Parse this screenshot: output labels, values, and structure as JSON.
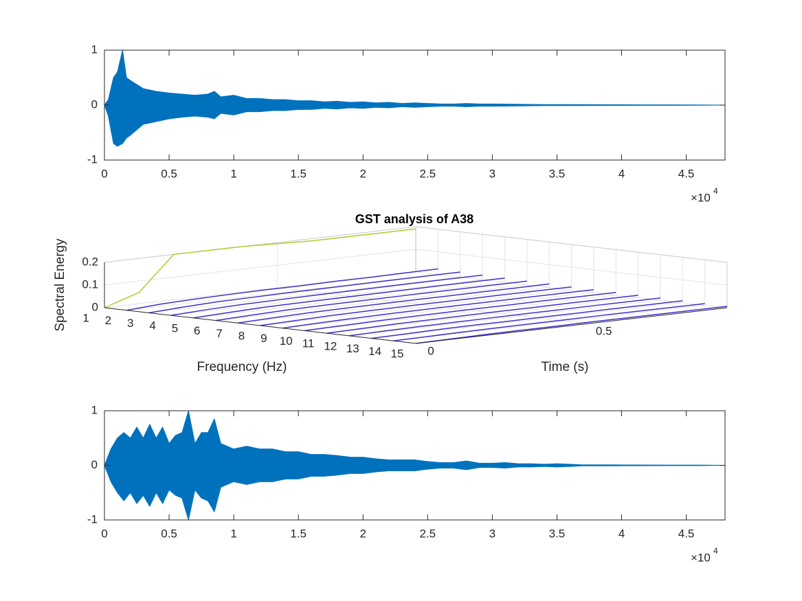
{
  "chart_data": [
    {
      "type": "wave",
      "x": [
        0,
        300,
        700,
        1000,
        1400,
        1700,
        2000,
        3000,
        4000,
        5000,
        6000,
        7000,
        8000,
        8500,
        9000,
        10000,
        11000,
        12000,
        13000,
        14000,
        15000,
        16000,
        17000,
        18000,
        19000,
        20000,
        21000,
        22000,
        23000,
        24000,
        25000,
        26000,
        27000,
        28000,
        29000,
        30000,
        32000,
        34000,
        36000,
        38000,
        40000,
        42000,
        44000,
        46000,
        48000
      ],
      "series": [
        {
          "color": "#0072bd",
          "values": [
            0,
            0.1,
            0.5,
            0.6,
            1,
            0.5,
            0.45,
            0.3,
            0.25,
            0.22,
            0.2,
            0.18,
            0.2,
            0.25,
            0.15,
            0.18,
            0.12,
            0.12,
            0.1,
            0.1,
            0.08,
            0.08,
            0.06,
            0.07,
            0.05,
            0.06,
            0.04,
            0.05,
            0.03,
            0.04,
            0.03,
            0.02,
            0.02,
            0.03,
            0.02,
            0.02,
            0.015,
            0.01,
            0.01,
            0.008,
            0.006,
            0.005,
            0.004,
            0.003,
            0
          ]
        },
        {
          "color": "#0072bd",
          "values": [
            0,
            -0.2,
            -0.7,
            -0.75,
            -0.7,
            -0.6,
            -0.55,
            -0.35,
            -0.3,
            -0.25,
            -0.22,
            -0.2,
            -0.22,
            -0.25,
            -0.15,
            -0.18,
            -0.12,
            -0.12,
            -0.1,
            -0.1,
            -0.08,
            -0.08,
            -0.06,
            -0.07,
            -0.05,
            -0.06,
            -0.04,
            -0.05,
            -0.03,
            -0.04,
            -0.03,
            -0.02,
            -0.02,
            -0.03,
            -0.02,
            -0.02,
            -0.015,
            -0.01,
            -0.01,
            -0.008,
            -0.006,
            -0.005,
            -0.004,
            -0.003,
            0
          ]
        }
      ],
      "xlim": [
        0,
        48000
      ],
      "xticks": [
        0,
        {
          "value": 5000,
          "label": "0.5"
        },
        {
          "value": 10000,
          "label": "1"
        },
        {
          "value": 15000,
          "label": "1.5"
        },
        {
          "value": 20000,
          "label": "2"
        },
        {
          "value": 25000,
          "label": "2.5"
        },
        {
          "value": 30000,
          "label": "3"
        },
        {
          "value": 35000,
          "label": "3.5"
        },
        {
          "value": 40000,
          "label": "4"
        },
        {
          "value": 45000,
          "label": "4.5"
        }
      ],
      "x_multiplier": {
        "base": "×10",
        "exponent": "4"
      },
      "ylim": [
        -1,
        1
      ],
      "yticks": [
        -1,
        0,
        1
      ]
    },
    {
      "type": "waterfall3d",
      "title": "GST analysis of A38",
      "xlabel": "Frequency (Hz)",
      "ylabel": "Time (s)",
      "zlabel": "Spectral Energy",
      "xlim": [
        1,
        15
      ],
      "xticks": [
        1,
        2,
        3,
        4,
        5,
        6,
        7,
        8,
        9,
        10,
        11,
        12,
        13,
        14,
        15
      ],
      "ylim": [
        0,
        0.9
      ],
      "yticks": [
        0,
        0.5
      ],
      "zlim": [
        0,
        0.2
      ],
      "zticks": [
        0,
        0.1,
        0.2
      ],
      "y": [
        0,
        0.1,
        0.2,
        0.3,
        0.4,
        0.5,
        0.6,
        0.7,
        0.8,
        0.9
      ],
      "series": [
        {
          "x": 1,
          "color": "#b5c82e",
          "values": [
            0,
            0.05,
            0.2,
            0.2,
            0.2,
            0.195,
            0.19,
            0.19,
            0.19,
            0.19
          ]
        },
        {
          "x": 2,
          "color": "#3d2fc9",
          "values": [
            0,
            0.01,
            0.015,
            0.018,
            0.02,
            0.02,
            0.022,
            0.022,
            0.024,
            0.025
          ]
        },
        {
          "x": 3,
          "color": "#3d2fc9",
          "values": [
            0,
            0.008,
            0.014,
            0.016,
            0.018,
            0.019,
            0.02,
            0.021,
            0.022,
            0.022
          ]
        },
        {
          "x": 4,
          "color": "#3d2fc9",
          "values": [
            0,
            0.007,
            0.012,
            0.014,
            0.016,
            0.017,
            0.018,
            0.019,
            0.02,
            0.02
          ]
        },
        {
          "x": 5,
          "color": "#3d2fc9",
          "values": [
            0,
            0.006,
            0.011,
            0.013,
            0.014,
            0.015,
            0.016,
            0.017,
            0.018,
            0.018
          ]
        },
        {
          "x": 6,
          "color": "#3d2fc9",
          "values": [
            0,
            0.005,
            0.01,
            0.012,
            0.013,
            0.014,
            0.015,
            0.015,
            0.016,
            0.016
          ]
        },
        {
          "x": 7,
          "color": "#3d2fc9",
          "values": [
            0,
            0.005,
            0.009,
            0.011,
            0.012,
            0.013,
            0.013,
            0.014,
            0.014,
            0.015
          ]
        },
        {
          "x": 8,
          "color": "#3d2fc9",
          "values": [
            0,
            0.004,
            0.008,
            0.01,
            0.011,
            0.012,
            0.012,
            0.013,
            0.013,
            0.013
          ]
        },
        {
          "x": 9,
          "color": "#3d2fc9",
          "values": [
            0,
            0.004,
            0.007,
            0.009,
            0.01,
            0.011,
            0.011,
            0.012,
            0.012,
            0.012
          ]
        },
        {
          "x": 10,
          "color": "#3d2fc9",
          "values": [
            0,
            0.003,
            0.006,
            0.008,
            0.009,
            0.01,
            0.01,
            0.011,
            0.011,
            0.011
          ]
        },
        {
          "x": 11,
          "color": "#3d2fc9",
          "values": [
            0,
            0.003,
            0.006,
            0.007,
            0.008,
            0.009,
            0.009,
            0.01,
            0.01,
            0.01
          ]
        },
        {
          "x": 12,
          "color": "#3d2fc9",
          "values": [
            0,
            0.003,
            0.005,
            0.006,
            0.007,
            0.008,
            0.008,
            0.009,
            0.009,
            0.009
          ]
        },
        {
          "x": 13,
          "color": "#3d2fc9",
          "values": [
            0,
            0.002,
            0.005,
            0.006,
            0.006,
            0.007,
            0.007,
            0.008,
            0.008,
            0.008
          ]
        },
        {
          "x": 14,
          "color": "#3d2fc9",
          "values": [
            0,
            0.002,
            0.004,
            0.005,
            0.006,
            0.006,
            0.007,
            0.007,
            0.007,
            0.007
          ]
        },
        {
          "x": 15,
          "color": "#3d2fc9",
          "values": [
            0,
            0.002,
            0.004,
            0.005,
            0.005,
            0.006,
            0.006,
            0.006,
            0.006,
            0.006
          ]
        }
      ]
    },
    {
      "type": "wave",
      "x": [
        0,
        500,
        1000,
        1500,
        2000,
        2500,
        3000,
        3500,
        4000,
        4500,
        5000,
        5500,
        6000,
        6500,
        7000,
        7500,
        8000,
        8500,
        9000,
        9500,
        10000,
        11000,
        12000,
        13000,
        14000,
        15000,
        16000,
        17000,
        18000,
        19000,
        20000,
        21000,
        22000,
        23000,
        24000,
        25000,
        26000,
        27000,
        28000,
        29000,
        30000,
        31000,
        32000,
        33000,
        34000,
        35000,
        36000,
        37000,
        38000,
        40000,
        42000,
        44000,
        46000,
        48000
      ],
      "series": [
        {
          "color": "#0072bd",
          "values": [
            0,
            0.3,
            0.5,
            0.6,
            0.5,
            0.7,
            0.5,
            0.75,
            0.5,
            0.7,
            0.4,
            0.55,
            0.6,
            1,
            0.4,
            0.6,
            0.6,
            0.85,
            0.4,
            0.35,
            0.3,
            0.35,
            0.3,
            0.3,
            0.25,
            0.25,
            0.2,
            0.2,
            0.18,
            0.15,
            0.15,
            0.12,
            0.1,
            0.1,
            0.1,
            0.07,
            0.05,
            0.05,
            0.08,
            0.04,
            0.04,
            0.05,
            0.03,
            0.03,
            0.02,
            0.03,
            0.02,
            0.01,
            0.01,
            0.008,
            0.006,
            0.005,
            0.004,
            0
          ]
        },
        {
          "color": "#0072bd",
          "values": [
            0,
            -0.3,
            -0.5,
            -0.65,
            -0.5,
            -0.7,
            -0.55,
            -0.75,
            -0.5,
            -0.7,
            -0.45,
            -0.55,
            -0.6,
            -1,
            -0.45,
            -0.6,
            -0.65,
            -0.85,
            -0.4,
            -0.35,
            -0.3,
            -0.35,
            -0.3,
            -0.3,
            -0.25,
            -0.25,
            -0.2,
            -0.2,
            -0.18,
            -0.15,
            -0.15,
            -0.12,
            -0.1,
            -0.1,
            -0.1,
            -0.07,
            -0.05,
            -0.05,
            -0.08,
            -0.04,
            -0.04,
            -0.05,
            -0.03,
            -0.03,
            -0.02,
            -0.03,
            -0.02,
            -0.01,
            -0.01,
            -0.008,
            -0.006,
            -0.005,
            -0.004,
            0
          ]
        }
      ],
      "xlim": [
        0,
        48000
      ],
      "xticks": [
        0,
        {
          "value": 5000,
          "label": "0.5"
        },
        {
          "value": 10000,
          "label": "1"
        },
        {
          "value": 15000,
          "label": "1.5"
        },
        {
          "value": 20000,
          "label": "2"
        },
        {
          "value": 25000,
          "label": "2.5"
        },
        {
          "value": 30000,
          "label": "3"
        },
        {
          "value": 35000,
          "label": "3.5"
        },
        {
          "value": 40000,
          "label": "4"
        },
        {
          "value": 45000,
          "label": "4.5"
        }
      ],
      "x_multiplier": {
        "base": "×10",
        "exponent": "4"
      },
      "ylim": [
        -1,
        1
      ],
      "yticks": [
        -1,
        0,
        1
      ]
    }
  ]
}
